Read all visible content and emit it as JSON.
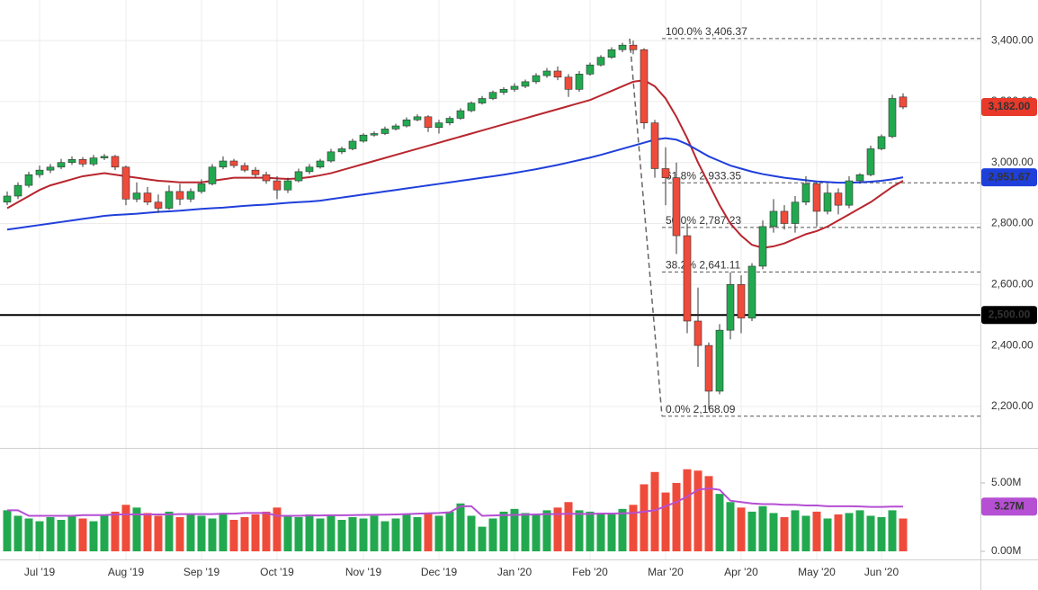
{
  "chart_data": {
    "type": "candlestick",
    "categories": [
      null,
      null,
      null,
      "Jul '19",
      null,
      null,
      null,
      null,
      null,
      null,
      null,
      "Aug '19",
      null,
      null,
      null,
      null,
      null,
      null,
      "Sep '19",
      null,
      null,
      null,
      null,
      null,
      null,
      "Oct '19",
      null,
      null,
      null,
      null,
      null,
      null,
      null,
      "Nov '19",
      null,
      null,
      null,
      null,
      null,
      null,
      "Dec '19",
      null,
      null,
      null,
      null,
      null,
      null,
      "Jan '20",
      null,
      null,
      null,
      null,
      null,
      null,
      "Feb '20",
      null,
      null,
      null,
      null,
      null,
      null,
      "Mar '20",
      null,
      null,
      null,
      null,
      null,
      null,
      "Apr '20",
      null,
      null,
      null,
      null,
      null,
      null,
      "May '20",
      null,
      null,
      null,
      null,
      null,
      "Jun '20",
      null,
      null
    ],
    "open": [
      2870,
      2890,
      2925,
      2960,
      2975,
      2985,
      3000,
      3010,
      2995,
      3015,
      3020,
      2985,
      2880,
      2900,
      2870,
      2850,
      2905,
      2880,
      2905,
      2930,
      2985,
      3005,
      2990,
      2975,
      2960,
      2940,
      2910,
      2940,
      2970,
      2985,
      3005,
      3035,
      3045,
      3070,
      3090,
      3095,
      3110,
      3120,
      3140,
      3150,
      3115,
      3130,
      3145,
      3170,
      3195,
      3210,
      3230,
      3240,
      3250,
      3265,
      3285,
      3300,
      3280,
      3240,
      3290,
      3320,
      3345,
      3370,
      3385,
      3370,
      3130,
      2980,
      2950,
      2760,
      2480,
      2400,
      2250,
      2450,
      2600,
      2490,
      2660,
      2790,
      2840,
      2800,
      2870,
      2930,
      2840,
      2900,
      2860,
      2940,
      2960,
      3045,
      3085,
      3215
    ],
    "high": [
      2905,
      2935,
      2970,
      2990,
      2995,
      3012,
      3020,
      3018,
      3025,
      3028,
      3025,
      2990,
      2935,
      2920,
      2895,
      2925,
      2930,
      2915,
      2945,
      2995,
      3020,
      3012,
      3000,
      2985,
      2970,
      2955,
      2950,
      2980,
      2995,
      3012,
      3045,
      3052,
      3078,
      3096,
      3102,
      3118,
      3127,
      3148,
      3158,
      3155,
      3140,
      3152,
      3178,
      3200,
      3218,
      3236,
      3247,
      3260,
      3272,
      3293,
      3310,
      3315,
      3290,
      3300,
      3328,
      3352,
      3378,
      3393,
      3400,
      3375,
      3140,
      3050,
      3000,
      2800,
      2590,
      2410,
      2470,
      2640,
      2630,
      2670,
      2810,
      2880,
      2860,
      2890,
      2955,
      2935,
      2930,
      2915,
      2955,
      2965,
      3055,
      3092,
      3222,
      3227
    ],
    "low": [
      2860,
      2880,
      2918,
      2950,
      2965,
      2978,
      2992,
      2985,
      2988,
      3008,
      2975,
      2860,
      2870,
      2860,
      2835,
      2845,
      2860,
      2870,
      2898,
      2925,
      2978,
      2982,
      2968,
      2950,
      2930,
      2880,
      2900,
      2935,
      2962,
      2980,
      3000,
      3028,
      3040,
      3065,
      3085,
      3090,
      3105,
      3115,
      3135,
      3100,
      3095,
      3122,
      3140,
      3165,
      3190,
      3205,
      3222,
      3232,
      3244,
      3258,
      3278,
      3270,
      3215,
      3232,
      3285,
      3315,
      3340,
      3362,
      3355,
      3110,
      2950,
      2860,
      2700,
      2440,
      2330,
      2190,
      2240,
      2420,
      2440,
      2480,
      2650,
      2770,
      2780,
      2770,
      2860,
      2790,
      2830,
      2830,
      2850,
      2930,
      2955,
      3040,
      3080,
      3175
    ],
    "close": [
      2890,
      2925,
      2960,
      2975,
      2985,
      3000,
      3010,
      2995,
      3015,
      3020,
      2985,
      2880,
      2900,
      2870,
      2850,
      2905,
      2880,
      2905,
      2930,
      2985,
      3005,
      2990,
      2975,
      2960,
      2940,
      2910,
      2940,
      2970,
      2985,
      3005,
      3035,
      3045,
      3070,
      3090,
      3095,
      3110,
      3120,
      3140,
      3150,
      3115,
      3130,
      3145,
      3170,
      3195,
      3210,
      3230,
      3240,
      3250,
      3265,
      3285,
      3300,
      3280,
      3240,
      3290,
      3320,
      3345,
      3370,
      3385,
      3370,
      3130,
      2980,
      2950,
      2760,
      2480,
      2400,
      2250,
      2450,
      2600,
      2490,
      2660,
      2790,
      2840,
      2800,
      2870,
      2930,
      2840,
      2900,
      2860,
      2940,
      2960,
      3045,
      3085,
      3210,
      3182
    ],
    "up_color": "#22a94f",
    "down_color": "#ef4b3b",
    "ylim": [
      2067,
      3533
    ],
    "yticks": [
      {
        "value": 2200,
        "label": "2,200.00"
      },
      {
        "value": 2400,
        "label": "2,400.00"
      },
      {
        "value": 2600,
        "label": "2,600.00"
      },
      {
        "value": 2800,
        "label": "2,800.00"
      },
      {
        "value": 3000,
        "label": "3,000.00"
      },
      {
        "value": 3200,
        "label": "3,200.00"
      },
      {
        "value": 3400,
        "label": "3,400.00"
      }
    ],
    "grid": true,
    "overlays": [
      {
        "color": "#b8262e",
        "values": [
          2850,
          2870,
          2890,
          2910,
          2925,
          2935,
          2945,
          2955,
          2960,
          2965,
          2960,
          2955,
          2950,
          2945,
          2940,
          2938,
          2935,
          2935,
          2935,
          2940,
          2945,
          2950,
          2950,
          2950,
          2950,
          2948,
          2946,
          2948,
          2952,
          2958,
          2965,
          2975,
          2985,
          2995,
          3005,
          3015,
          3025,
          3035,
          3045,
          3055,
          3065,
          3075,
          3085,
          3095,
          3105,
          3115,
          3125,
          3135,
          3145,
          3155,
          3165,
          3175,
          3185,
          3195,
          3205,
          3220,
          3235,
          3250,
          3265,
          3270,
          3250,
          3210,
          3150,
          3080,
          3000,
          2930,
          2860,
          2800,
          2760,
          2730,
          2720,
          2725,
          2735,
          2750,
          2765,
          2775,
          2790,
          2810,
          2830,
          2850,
          2870,
          2895,
          2920,
          2940
        ]
      },
      {
        "color": "#1f3fdb",
        "values": [
          2780,
          2785,
          2790,
          2795,
          2800,
          2805,
          2810,
          2815,
          2820,
          2825,
          2828,
          2830,
          2832,
          2835,
          2838,
          2840,
          2842,
          2845,
          2848,
          2850,
          2852,
          2855,
          2858,
          2860,
          2862,
          2865,
          2868,
          2870,
          2872,
          2875,
          2880,
          2885,
          2890,
          2895,
          2900,
          2905,
          2910,
          2915,
          2920,
          2925,
          2930,
          2935,
          2940,
          2945,
          2950,
          2955,
          2960,
          2966,
          2972,
          2978,
          2985,
          2992,
          3000,
          3008,
          3016,
          3025,
          3035,
          3045,
          3055,
          3065,
          3075,
          3080,
          3075,
          3060,
          3040,
          3020,
          3005,
          2990,
          2980,
          2970,
          2962,
          2956,
          2950,
          2946,
          2942,
          2938,
          2936,
          2934,
          2934,
          2935,
          2937,
          2940,
          2945,
          2951.67
        ]
      }
    ],
    "levels": [
      {
        "value": 3406.37,
        "label": "100.0% 3,406.37"
      },
      {
        "value": 2933.35,
        "label": "61.8% 2,933.35"
      },
      {
        "value": 2787.23,
        "label": "50.0% 2,787.23"
      },
      {
        "value": 2641.11,
        "label": "38.2% 2,641.11"
      },
      {
        "value": 2168.09,
        "label": "0.0% 2,168.09"
      }
    ],
    "hline": {
      "value": 2500,
      "label": "2,500.00",
      "color": "#000000"
    },
    "badges": [
      {
        "value": 3182,
        "label": "3,182.00",
        "color": "#e8392b"
      },
      {
        "value": 2951.67,
        "label": "2,951.67",
        "color": "#1f3fdb"
      }
    ],
    "volume": {
      "values": [
        3.0,
        2.6,
        2.4,
        2.2,
        2.5,
        2.3,
        2.6,
        2.4,
        2.2,
        2.7,
        2.9,
        3.4,
        3.2,
        2.8,
        2.6,
        2.9,
        2.5,
        2.7,
        2.6,
        2.4,
        2.8,
        2.3,
        2.5,
        2.7,
        2.9,
        3.2,
        2.6,
        2.5,
        2.7,
        2.4,
        2.6,
        2.3,
        2.5,
        2.4,
        2.6,
        2.2,
        2.4,
        2.7,
        2.5,
        2.8,
        2.6,
        2.9,
        3.5,
        2.6,
        1.8,
        2.4,
        2.9,
        3.1,
        2.8,
        2.7,
        3.0,
        3.2,
        3.6,
        3.0,
        2.9,
        2.8,
        2.7,
        3.1,
        3.4,
        4.9,
        5.8,
        4.3,
        5.0,
        6.0,
        5.9,
        5.5,
        4.2,
        3.6,
        3.2,
        2.9,
        3.3,
        2.8,
        2.5,
        3.0,
        2.6,
        2.9,
        2.4,
        2.7,
        2.8,
        3.0,
        2.6,
        2.5,
        3.0,
        2.4
      ],
      "ylim": [
        -0.46,
        7.43
      ],
      "yticks": [
        {
          "value": 5,
          "label": "5.00M"
        },
        {
          "value": 0,
          "label": "0.00M"
        }
      ],
      "ma": {
        "color": "#b54fd3",
        "values": [
          3.0,
          3.0,
          2.6,
          2.6,
          2.6,
          2.6,
          2.6,
          2.65,
          2.65,
          2.65,
          2.7,
          2.7,
          2.7,
          2.7,
          2.7,
          2.7,
          2.72,
          2.72,
          2.72,
          2.72,
          2.75,
          2.75,
          2.8,
          2.8,
          2.8,
          2.6,
          2.6,
          2.6,
          2.62,
          2.62,
          2.64,
          2.64,
          2.65,
          2.66,
          2.67,
          2.68,
          2.7,
          2.72,
          2.75,
          2.78,
          2.8,
          2.85,
          3.3,
          3.3,
          2.6,
          2.62,
          2.65,
          2.66,
          2.68,
          2.7,
          2.72,
          2.72,
          2.75,
          2.74,
          2.74,
          2.76,
          2.76,
          2.78,
          2.8,
          2.9,
          3.0,
          3.3,
          3.6,
          4.0,
          4.5,
          4.6,
          4.5,
          3.7,
          3.6,
          3.5,
          3.45,
          3.45,
          3.4,
          3.4,
          3.35,
          3.35,
          3.3,
          3.3,
          3.3,
          3.28,
          3.25,
          3.25,
          3.27,
          3.27
        ]
      },
      "badge": {
        "value": 3.27,
        "label": "3.27M"
      }
    }
  }
}
